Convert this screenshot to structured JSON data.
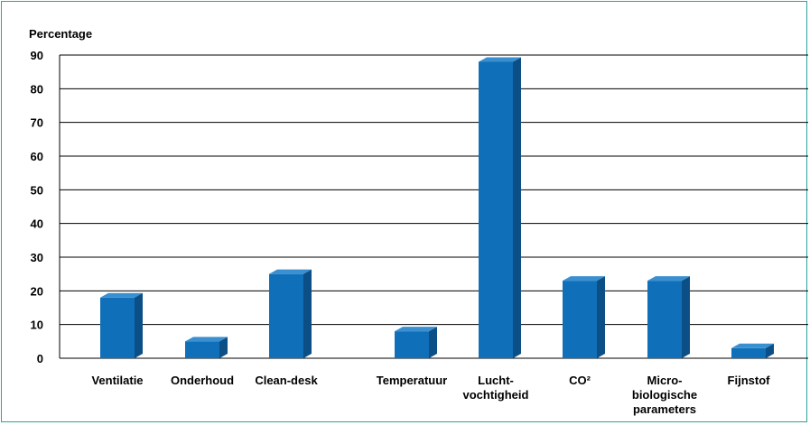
{
  "chart_data": {
    "type": "bar",
    "ylabel": "Percentage",
    "ylim": [
      0,
      90
    ],
    "yticks": [
      0,
      10,
      20,
      30,
      40,
      50,
      60,
      70,
      80,
      90
    ],
    "grid": true,
    "bar_color": "#0f6fb8",
    "bar_side_color": "#0b4f86",
    "bar_top_color": "#3a8fd0",
    "categories": [
      {
        "label": [
          "Ventilatie"
        ],
        "value": 18
      },
      {
        "label": [
          "Onderhoud"
        ],
        "value": 5
      },
      {
        "label": [
          "Clean-desk"
        ],
        "value": 25
      },
      {
        "label": [
          "Temperatuur"
        ],
        "value": 8
      },
      {
        "label": [
          "Lucht-",
          "vochtigheid"
        ],
        "value": 88
      },
      {
        "label": [
          "CO²"
        ],
        "value": 23
      },
      {
        "label": [
          "Micro-",
          "biologische",
          "parameters"
        ],
        "value": 23
      },
      {
        "label": [
          "Fijnstof"
        ],
        "value": 3
      }
    ]
  }
}
